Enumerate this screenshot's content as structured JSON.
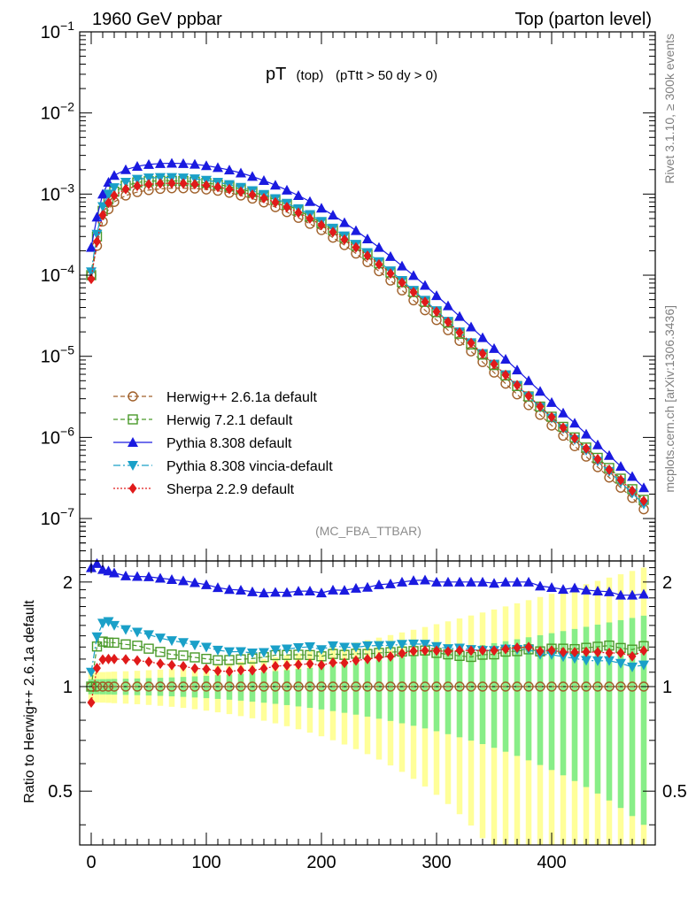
{
  "header": {
    "left": "1960 GeV ppbar",
    "right": "Top (parton level)",
    "side_rivet": "Rivet 3.1.10, ≥ 300k events",
    "side_mcplots": "mcplots.cern.ch [arXiv:1306.3436]",
    "analysis": "(MC_FBA_TTBAR)"
  },
  "title": {
    "main": "pT",
    "sub1": "(top)",
    "sub2": "(pTtt > 50 dy > 0)"
  },
  "ratio_ylabel": "Ratio to Herwig++ 2.6.1a default",
  "colors": {
    "herwigpp": "#a0602a",
    "herwig7": "#4a9a2a",
    "pythia": "#1a1ae0",
    "vincia": "#1aa0c8",
    "sherpa": "#e01a1a",
    "band_outer": "#ffff99",
    "band_inner": "#88ee88"
  },
  "chart_data": {
    "type": "line",
    "title": "pT (top) (pTtt > 50 dy > 0)",
    "xlabel": "",
    "ylabel": "",
    "xlim": [
      -10,
      490
    ],
    "ylim": [
      3e-08,
      0.1
    ],
    "yscale": "log",
    "x_ticks": [
      "0",
      "100",
      "200",
      "300",
      "400"
    ],
    "y_ticks": [
      "10^-1",
      "10^-2",
      "10^-3",
      "10^-4",
      "10^-5",
      "10^-6",
      "10^-7"
    ],
    "ratio_ylim": [
      0.35,
      2.3
    ],
    "ratio_ticks": [
      "0.5",
      "1",
      "2"
    ],
    "legend_position": "bottom-left",
    "x": [
      0,
      5,
      10,
      15,
      20,
      30,
      40,
      50,
      60,
      70,
      80,
      90,
      100,
      110,
      120,
      130,
      140,
      150,
      160,
      170,
      180,
      190,
      200,
      210,
      220,
      230,
      240,
      250,
      260,
      270,
      280,
      290,
      300,
      310,
      320,
      330,
      340,
      350,
      360,
      370,
      380,
      390,
      400,
      410,
      420,
      430,
      440,
      450,
      460,
      470,
      480
    ],
    "series": [
      {
        "name": "Herwig++ 2.6.1a default",
        "marker": "open-circle",
        "values": [
          0.0001,
          0.00023,
          0.00046,
          0.00065,
          0.0008,
          0.00096,
          0.00106,
          0.00112,
          0.00116,
          0.00118,
          0.00118,
          0.00117,
          0.00114,
          0.0011,
          0.00104,
          0.00096,
          0.00088,
          0.00079,
          0.00069,
          0.0006,
          0.00051,
          0.00043,
          0.00036,
          0.00029,
          0.000235,
          0.000185,
          0.000145,
          0.000112,
          8.6e-05,
          6.5e-05,
          4.9e-05,
          3.7e-05,
          2.8e-05,
          2.1e-05,
          1.55e-05,
          1.15e-05,
          8.5e-06,
          6.3e-06,
          4.6e-06,
          3.4e-06,
          2.5e-06,
          1.9e-06,
          1.4e-06,
          1.05e-06,
          7.8e-07,
          5.8e-07,
          4.3e-07,
          3.2e-07,
          2.4e-07,
          1.8e-07,
          1.3e-07
        ]
      },
      {
        "name": "Herwig 7.2.1 default",
        "marker": "open-square",
        "values": [
          0.0001,
          0.0003,
          0.00062,
          0.00087,
          0.00107,
          0.00127,
          0.00139,
          0.00144,
          0.00146,
          0.00146,
          0.00145,
          0.00142,
          0.00137,
          0.00131,
          0.00124,
          0.00115,
          0.00106,
          0.00096,
          0.00085,
          0.00074,
          0.00063,
          0.00053,
          0.00044,
          0.00036,
          0.00029,
          0.00023,
          0.00018,
          0.00014,
          0.000108,
          8.2e-05,
          6.2e-05,
          4.7e-05,
          3.5e-05,
          2.6e-05,
          1.9e-05,
          1.4e-05,
          1.05e-05,
          7.8e-06,
          5.8e-06,
          4.3e-06,
          3.2e-06,
          2.4e-06,
          1.8e-06,
          1.35e-06,
          1e-06,
          7.5e-07,
          5.6e-07,
          4.2e-07,
          3.1e-07,
          2.3e-07,
          1.7e-07
        ]
      },
      {
        "name": "Pythia 8.308 default",
        "marker": "filled-triangle-up",
        "values": [
          0.00022,
          0.00052,
          0.001,
          0.0014,
          0.0017,
          0.002,
          0.0022,
          0.00232,
          0.00238,
          0.0024,
          0.00238,
          0.00233,
          0.00224,
          0.00212,
          0.00198,
          0.00182,
          0.00165,
          0.00147,
          0.00129,
          0.00112,
          0.00096,
          0.00081,
          0.00067,
          0.00055,
          0.000445,
          0.000355,
          0.00028,
          0.00022,
          0.00017,
          0.00013,
          9.9e-05,
          7.5e-05,
          5.6e-05,
          4.2e-05,
          3.1e-05,
          2.3e-05,
          1.7e-05,
          1.25e-05,
          9.2e-06,
          6.8e-06,
          5e-06,
          3.7e-06,
          2.7e-06,
          2e-06,
          1.5e-06,
          1.1e-06,
          8.1e-07,
          6e-07,
          4.4e-07,
          3.3e-07,
          2.4e-07
        ]
      },
      {
        "name": "Pythia 8.308 vincia-default",
        "marker": "filled-triangle-down",
        "values": [
          0.00011,
          0.00032,
          0.0007,
          0.001,
          0.0012,
          0.0014,
          0.00152,
          0.00158,
          0.0016,
          0.0016,
          0.00158,
          0.00154,
          0.00148,
          0.0014,
          0.00131,
          0.00121,
          0.0011,
          0.00099,
          0.00088,
          0.00077,
          0.00066,
          0.00056,
          0.00046,
          0.00038,
          0.000305,
          0.00024,
          0.00019,
          0.000147,
          0.000113,
          8.6e-05,
          6.5e-05,
          4.9e-05,
          3.65e-05,
          2.7e-05,
          2e-05,
          1.47e-05,
          1.08e-05,
          8e-06,
          5.9e-06,
          4.35e-06,
          3.2e-06,
          2.35e-06,
          1.73e-06,
          1.28e-06,
          9.4e-07,
          6.9e-07,
          5.1e-07,
          3.8e-07,
          2.8e-07,
          2.05e-07,
          1.5e-07
        ]
      },
      {
        "name": "Sherpa 2.2.9 default",
        "marker": "filled-diamond",
        "values": [
          9e-05,
          0.00026,
          0.00055,
          0.00078,
          0.00096,
          0.00115,
          0.00126,
          0.00132,
          0.00135,
          0.00136,
          0.00135,
          0.00132,
          0.00128,
          0.00122,
          0.00115,
          0.00107,
          0.00098,
          0.00089,
          0.00079,
          0.00069,
          0.00059,
          0.0005,
          0.000415,
          0.00034,
          0.000275,
          0.00022,
          0.000174,
          0.000136,
          0.000105,
          8.1e-05,
          6.2e-05,
          4.7e-05,
          3.55e-05,
          2.65e-05,
          1.97e-05,
          1.46e-05,
          1.08e-05,
          8e-06,
          5.9e-06,
          4.4e-06,
          3.25e-06,
          2.4e-06,
          1.78e-06,
          1.32e-06,
          9.8e-07,
          7.3e-07,
          5.4e-07,
          4e-07,
          3e-07,
          2.2e-07,
          1.65e-07
        ]
      }
    ]
  }
}
